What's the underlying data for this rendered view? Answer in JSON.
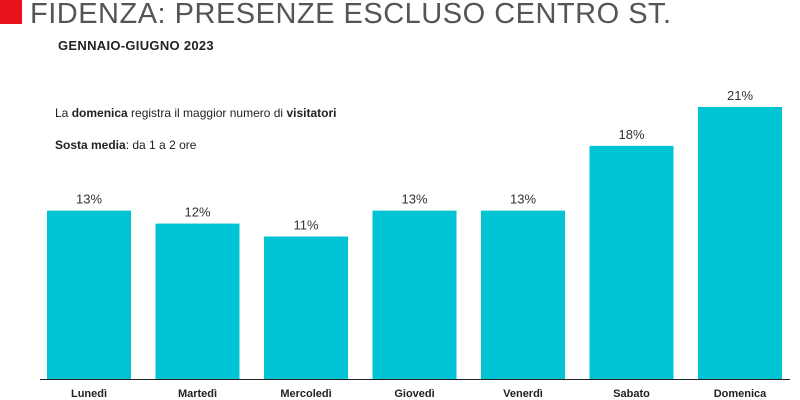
{
  "header": {
    "title": "FIDENZA: PRESENZE ESCLUSO CENTRO ST.",
    "subtitle": "GENNAIO-GIUGNO 2023"
  },
  "notes": {
    "line1": {
      "part1": "La ",
      "bold1": "domenica",
      "part2": " registra il maggior numero di ",
      "bold2": "visitatori"
    },
    "line2": {
      "bold": "Sosta media",
      "part": ": da 1 a 2 ore"
    }
  },
  "colors": {
    "accent": "#e8141b",
    "bar": "#00c3d4",
    "axis": "#222222"
  },
  "chart_data": {
    "type": "bar",
    "categories": [
      "Lunedì",
      "Martedì",
      "Mercoledì",
      "Giovedì",
      "Venerdì",
      "Sabato",
      "Domenica"
    ],
    "values": [
      13,
      12,
      11,
      13,
      13,
      18,
      21
    ],
    "value_labels": [
      "13%",
      "12%",
      "11%",
      "13%",
      "13%",
      "18%",
      "21%"
    ],
    "unit": "%",
    "ylim": [
      0,
      21
    ],
    "grid": false,
    "legend": "none"
  }
}
